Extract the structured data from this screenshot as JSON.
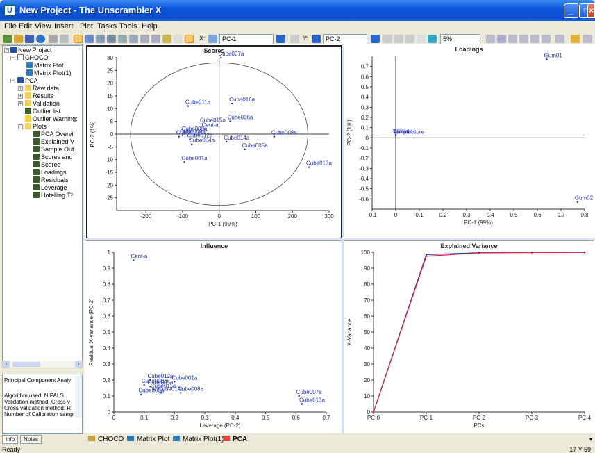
{
  "window": {
    "title": "New Project - The Unscrambler X",
    "app_icon": "U"
  },
  "menu": [
    "File",
    "Edit",
    "View",
    "Insert",
    "Plot",
    "Tasks",
    "Tools",
    "Help"
  ],
  "toolbar": {
    "x_label": "X:",
    "x_value": "PC-1",
    "y_label": "Y:",
    "y_value": "PC-2",
    "percent": "5%"
  },
  "tree": {
    "project": "New Project",
    "data": "CHOCO",
    "matrix1": "Matrix Plot",
    "matrix2": "Matrix Plot(1)",
    "pca": "PCA",
    "raw": "Raw data",
    "results": "Results",
    "validation": "Validation",
    "outlier_list": "Outlier list",
    "outlier_warn": "Outlier Warning:",
    "plots": "Plots",
    "plot_items": [
      "PCA Overvi",
      "Explained V",
      "Sample Out",
      "Scores and",
      "Scores",
      "Loadings",
      "Residuals",
      "Leverage",
      "Hotelling T²"
    ]
  },
  "info": {
    "title": "Principal Component Analy",
    "lines": [
      "Algorithm used: NIPALS",
      "Validation method: Cross v",
      "Cross validation method: R",
      "Number of Calibration samp"
    ]
  },
  "bottom_tabs": [
    "Info",
    "Notes"
  ],
  "doc_tabs": [
    "CHOCO",
    "Matrix Plot",
    "Matrix Plot(1)",
    "PCA"
  ],
  "status": {
    "left": "Ready",
    "right": "17 Y 59"
  },
  "chart_data": [
    {
      "type": "scatter",
      "title": "Scores",
      "xlabel": "PC-1 (99%)",
      "ylabel": "PC-2 (1%)",
      "xlim": [
        -280,
        300
      ],
      "ylim": [
        -30,
        30
      ],
      "xticks": [
        -200,
        -100,
        0,
        100,
        200,
        300
      ],
      "yticks": [
        -25,
        -20,
        -15,
        -10,
        -5,
        0,
        5,
        10,
        15,
        20,
        25,
        30
      ],
      "points": [
        {
          "label": "Cube007a",
          "x": 5,
          "y": 30
        },
        {
          "label": "Cube016a",
          "x": 35,
          "y": 12
        },
        {
          "label": "Cube011a",
          "x": -85,
          "y": 11
        },
        {
          "label": "Cube006a",
          "x": 30,
          "y": 5
        },
        {
          "label": "Cube015a",
          "x": -45,
          "y": 4
        },
        {
          "label": "Cent-a",
          "x": -40,
          "y": 2
        },
        {
          "label": "Cube008a",
          "x": 150,
          "y": -1
        },
        {
          "label": "Cube009a",
          "x": -95,
          "y": 0.5
        },
        {
          "label": "Cube003a",
          "x": -100,
          "y": -0.5
        },
        {
          "label": "Cube010a",
          "x": -110,
          "y": -1
        },
        {
          "label": "Cube012a",
          "x": -80,
          "y": -2
        },
        {
          "label": "Cube014a",
          "x": 20,
          "y": -3
        },
        {
          "label": "Cube004a",
          "x": -75,
          "y": -4
        },
        {
          "label": "Cube005a",
          "x": 70,
          "y": -6
        },
        {
          "label": "Cube001a",
          "x": -95,
          "y": -11
        },
        {
          "label": "Cube013a",
          "x": 245,
          "y": -13
        }
      ]
    },
    {
      "type": "scatter",
      "title": "Loadings",
      "xlabel": "PC-1 (99%)",
      "ylabel": "PC-2 (1%)",
      "xlim": [
        -0.1,
        0.8
      ],
      "ylim": [
        -0.7,
        0.8
      ],
      "xticks": [
        -0.1,
        0,
        0.1,
        0.2,
        0.3,
        0.4,
        0.5,
        0.6,
        0.7,
        0.8
      ],
      "yticks": [
        -0.6,
        -0.5,
        -0.4,
        -0.3,
        -0.2,
        -0.1,
        0,
        0.1,
        0.2,
        0.3,
        0.4,
        0.5,
        0.6,
        0.7
      ],
      "points": [
        {
          "label": "Gum01",
          "x": 0.64,
          "y": 0.77
        },
        {
          "label": "Storage",
          "x": 0.0,
          "y": 0.03
        },
        {
          "label": "Temperature",
          "x": 0.0,
          "y": 0.02
        },
        {
          "label": "Gum02",
          "x": 0.77,
          "y": -0.63
        }
      ]
    },
    {
      "type": "scatter",
      "title": "Influence",
      "xlabel": "Leverage (PC-2)",
      "ylabel": "Residual X-variance (PC-2)",
      "xlim": [
        0,
        0.7
      ],
      "ylim": [
        0,
        1
      ],
      "xticks": [
        0,
        0.1,
        0.2,
        0.3,
        0.4,
        0.5,
        0.6,
        0.7
      ],
      "yticks": [
        0,
        0.1,
        0.2,
        0.3,
        0.4,
        0.5,
        0.6,
        0.7,
        0.8,
        0.9,
        1
      ],
      "points": [
        {
          "label": "Cent-a",
          "x": 0.065,
          "y": 0.95
        },
        {
          "label": "Cube012a",
          "x": 0.12,
          "y": 0.2
        },
        {
          "label": "Cube001a",
          "x": 0.2,
          "y": 0.19
        },
        {
          "label": "Cube009a",
          "x": 0.1,
          "y": 0.17
        },
        {
          "label": "Cube005a",
          "x": 0.12,
          "y": 0.16
        },
        {
          "label": "Cube011a",
          "x": 0.13,
          "y": 0.14
        },
        {
          "label": "Cube014a",
          "x": 0.155,
          "y": 0.12
        },
        {
          "label": "Cube008a",
          "x": 0.22,
          "y": 0.12
        },
        {
          "label": "Cube003a",
          "x": 0.09,
          "y": 0.11
        },
        {
          "label": "Cube007a",
          "x": 0.61,
          "y": 0.1
        },
        {
          "label": "Cube013a",
          "x": 0.62,
          "y": 0.05
        }
      ]
    },
    {
      "type": "line",
      "title": "Explained Variance",
      "xlabel": "PCs",
      "ylabel": "X-Variance",
      "categories": [
        "PC-0",
        "PC-1",
        "PC-2",
        "PC-3",
        "PC-4"
      ],
      "ylim": [
        0,
        100
      ],
      "yticks": [
        0,
        10,
        20,
        30,
        40,
        50,
        60,
        70,
        80,
        90,
        100
      ],
      "series": [
        {
          "color": "#1c2fa8",
          "values": [
            0,
            98.5,
            99.7,
            99.9,
            100
          ]
        },
        {
          "color": "#d8203a",
          "values": [
            0,
            97.5,
            99.6,
            99.8,
            99.9
          ]
        }
      ]
    }
  ]
}
